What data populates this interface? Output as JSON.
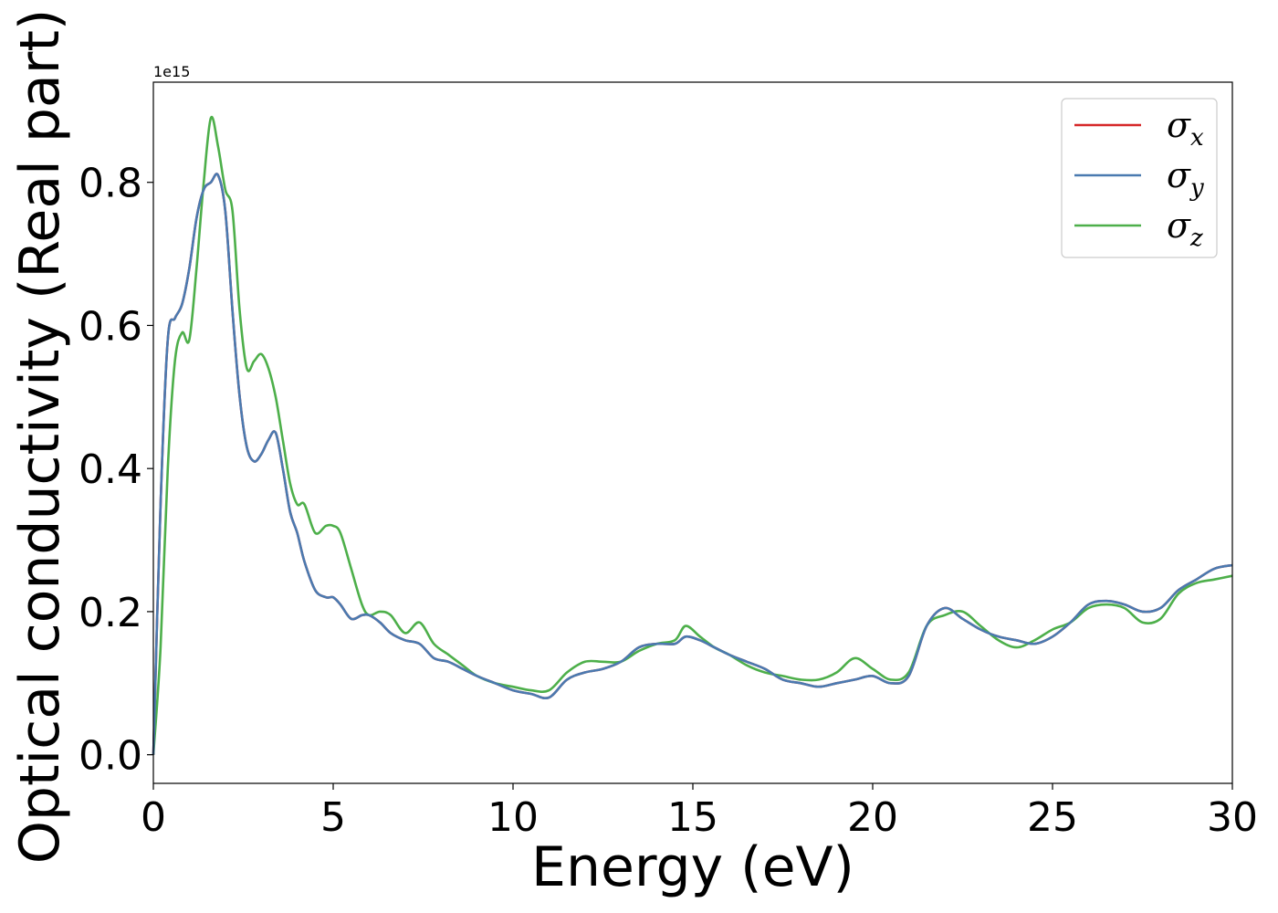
{
  "chart_data": {
    "type": "line",
    "xlabel": "Energy (eV)",
    "ylabel": "Optical conductivity (Real part)",
    "y_offset_label": "1e15",
    "xlim": [
      0,
      30
    ],
    "ylim": [
      -0.04,
      0.94
    ],
    "x_ticks": [
      0,
      5,
      10,
      15,
      20,
      25,
      30
    ],
    "x_tick_labels": [
      "0",
      "5",
      "10",
      "15",
      "20",
      "25",
      "30"
    ],
    "y_ticks": [
      0.0,
      0.2,
      0.4,
      0.6,
      0.8
    ],
    "y_tick_labels": [
      "0.0",
      "0.2",
      "0.4",
      "0.6",
      "0.8"
    ],
    "grid": false,
    "legend": {
      "placement": "top-right"
    },
    "colors": {
      "sigma_x": "#d62728",
      "sigma_y": "#4a7ab0",
      "sigma_z": "#4daf4a",
      "axes": "#000000"
    },
    "series": [
      {
        "name": "σx",
        "legend_base": "σ",
        "legend_sub": "x",
        "x": [
          0,
          0.2,
          0.4,
          0.6,
          0.8,
          1.0,
          1.2,
          1.4,
          1.6,
          1.8,
          2.0,
          2.2,
          2.4,
          2.6,
          2.8,
          3.0,
          3.2,
          3.4,
          3.6,
          3.8,
          4.0,
          4.2,
          4.5,
          4.8,
          5.0,
          5.2,
          5.5,
          5.8,
          6.0,
          6.3,
          6.6,
          7.0,
          7.4,
          7.8,
          8.2,
          8.6,
          9.0,
          9.5,
          10.0,
          10.5,
          11.0,
          11.5,
          12.0,
          12.5,
          13.0,
          13.5,
          14.0,
          14.5,
          14.8,
          15.2,
          15.6,
          16.0,
          16.5,
          17.0,
          17.5,
          18.0,
          18.5,
          19.0,
          19.5,
          20.0,
          20.5,
          21.0,
          21.5,
          22.0,
          22.5,
          23.0,
          23.5,
          24.0,
          24.5,
          25.0,
          25.5,
          26.0,
          26.5,
          27.0,
          27.5,
          28.0,
          28.5,
          29.0,
          29.5,
          30.0
        ],
        "y": [
          0.0,
          0.35,
          0.58,
          0.61,
          0.63,
          0.68,
          0.75,
          0.79,
          0.8,
          0.81,
          0.76,
          0.62,
          0.5,
          0.43,
          0.41,
          0.42,
          0.44,
          0.45,
          0.4,
          0.34,
          0.31,
          0.27,
          0.23,
          0.22,
          0.22,
          0.21,
          0.19,
          0.195,
          0.195,
          0.185,
          0.17,
          0.16,
          0.155,
          0.135,
          0.13,
          0.12,
          0.11,
          0.1,
          0.09,
          0.085,
          0.08,
          0.105,
          0.115,
          0.12,
          0.13,
          0.15,
          0.155,
          0.155,
          0.165,
          0.16,
          0.15,
          0.14,
          0.13,
          0.12,
          0.105,
          0.1,
          0.095,
          0.1,
          0.105,
          0.11,
          0.1,
          0.11,
          0.18,
          0.205,
          0.19,
          0.175,
          0.165,
          0.16,
          0.155,
          0.165,
          0.185,
          0.21,
          0.215,
          0.21,
          0.2,
          0.205,
          0.23,
          0.245,
          0.26,
          0.265
        ]
      },
      {
        "name": "σy",
        "legend_base": "σ",
        "legend_sub": "y",
        "x": [
          0,
          0.2,
          0.4,
          0.6,
          0.8,
          1.0,
          1.2,
          1.4,
          1.6,
          1.8,
          2.0,
          2.2,
          2.4,
          2.6,
          2.8,
          3.0,
          3.2,
          3.4,
          3.6,
          3.8,
          4.0,
          4.2,
          4.5,
          4.8,
          5.0,
          5.2,
          5.5,
          5.8,
          6.0,
          6.3,
          6.6,
          7.0,
          7.4,
          7.8,
          8.2,
          8.6,
          9.0,
          9.5,
          10.0,
          10.5,
          11.0,
          11.5,
          12.0,
          12.5,
          13.0,
          13.5,
          14.0,
          14.5,
          14.8,
          15.2,
          15.6,
          16.0,
          16.5,
          17.0,
          17.5,
          18.0,
          18.5,
          19.0,
          19.5,
          20.0,
          20.5,
          21.0,
          21.5,
          22.0,
          22.5,
          23.0,
          23.5,
          24.0,
          24.5,
          25.0,
          25.5,
          26.0,
          26.5,
          27.0,
          27.5,
          28.0,
          28.5,
          29.0,
          29.5,
          30.0
        ],
        "y": [
          0.0,
          0.35,
          0.58,
          0.61,
          0.63,
          0.68,
          0.75,
          0.79,
          0.8,
          0.81,
          0.76,
          0.62,
          0.5,
          0.43,
          0.41,
          0.42,
          0.44,
          0.45,
          0.4,
          0.34,
          0.31,
          0.27,
          0.23,
          0.22,
          0.22,
          0.21,
          0.19,
          0.195,
          0.195,
          0.185,
          0.17,
          0.16,
          0.155,
          0.135,
          0.13,
          0.12,
          0.11,
          0.1,
          0.09,
          0.085,
          0.08,
          0.105,
          0.115,
          0.12,
          0.13,
          0.15,
          0.155,
          0.155,
          0.165,
          0.16,
          0.15,
          0.14,
          0.13,
          0.12,
          0.105,
          0.1,
          0.095,
          0.1,
          0.105,
          0.11,
          0.1,
          0.11,
          0.18,
          0.205,
          0.19,
          0.175,
          0.165,
          0.16,
          0.155,
          0.165,
          0.185,
          0.21,
          0.215,
          0.21,
          0.2,
          0.205,
          0.23,
          0.245,
          0.26,
          0.265
        ]
      },
      {
        "name": "σz",
        "legend_base": "σ",
        "legend_sub": "z",
        "x": [
          0,
          0.2,
          0.4,
          0.6,
          0.8,
          1.0,
          1.2,
          1.4,
          1.6,
          1.8,
          2.0,
          2.2,
          2.4,
          2.6,
          2.8,
          3.0,
          3.2,
          3.4,
          3.6,
          3.8,
          4.0,
          4.2,
          4.5,
          4.8,
          5.0,
          5.2,
          5.5,
          5.8,
          6.0,
          6.3,
          6.6,
          7.0,
          7.4,
          7.8,
          8.2,
          8.6,
          9.0,
          9.5,
          10.0,
          10.5,
          11.0,
          11.5,
          12.0,
          12.5,
          13.0,
          13.5,
          14.0,
          14.5,
          14.8,
          15.2,
          15.6,
          16.0,
          16.5,
          17.0,
          17.5,
          18.0,
          18.5,
          19.0,
          19.5,
          20.0,
          20.5,
          21.0,
          21.5,
          22.0,
          22.5,
          23.0,
          23.5,
          24.0,
          24.5,
          25.0,
          25.5,
          26.0,
          26.5,
          27.0,
          27.5,
          28.0,
          28.5,
          29.0,
          29.5,
          30.0
        ],
        "y": [
          0.0,
          0.15,
          0.4,
          0.55,
          0.59,
          0.58,
          0.68,
          0.8,
          0.89,
          0.85,
          0.79,
          0.76,
          0.62,
          0.54,
          0.55,
          0.56,
          0.54,
          0.5,
          0.44,
          0.38,
          0.35,
          0.35,
          0.31,
          0.32,
          0.32,
          0.31,
          0.26,
          0.21,
          0.195,
          0.2,
          0.195,
          0.17,
          0.185,
          0.155,
          0.14,
          0.125,
          0.11,
          0.1,
          0.095,
          0.09,
          0.09,
          0.115,
          0.13,
          0.13,
          0.13,
          0.145,
          0.155,
          0.16,
          0.18,
          0.165,
          0.15,
          0.14,
          0.125,
          0.115,
          0.11,
          0.105,
          0.105,
          0.115,
          0.135,
          0.12,
          0.105,
          0.115,
          0.18,
          0.195,
          0.2,
          0.18,
          0.16,
          0.15,
          0.16,
          0.175,
          0.185,
          0.205,
          0.21,
          0.205,
          0.185,
          0.19,
          0.225,
          0.24,
          0.245,
          0.25
        ]
      }
    ]
  }
}
